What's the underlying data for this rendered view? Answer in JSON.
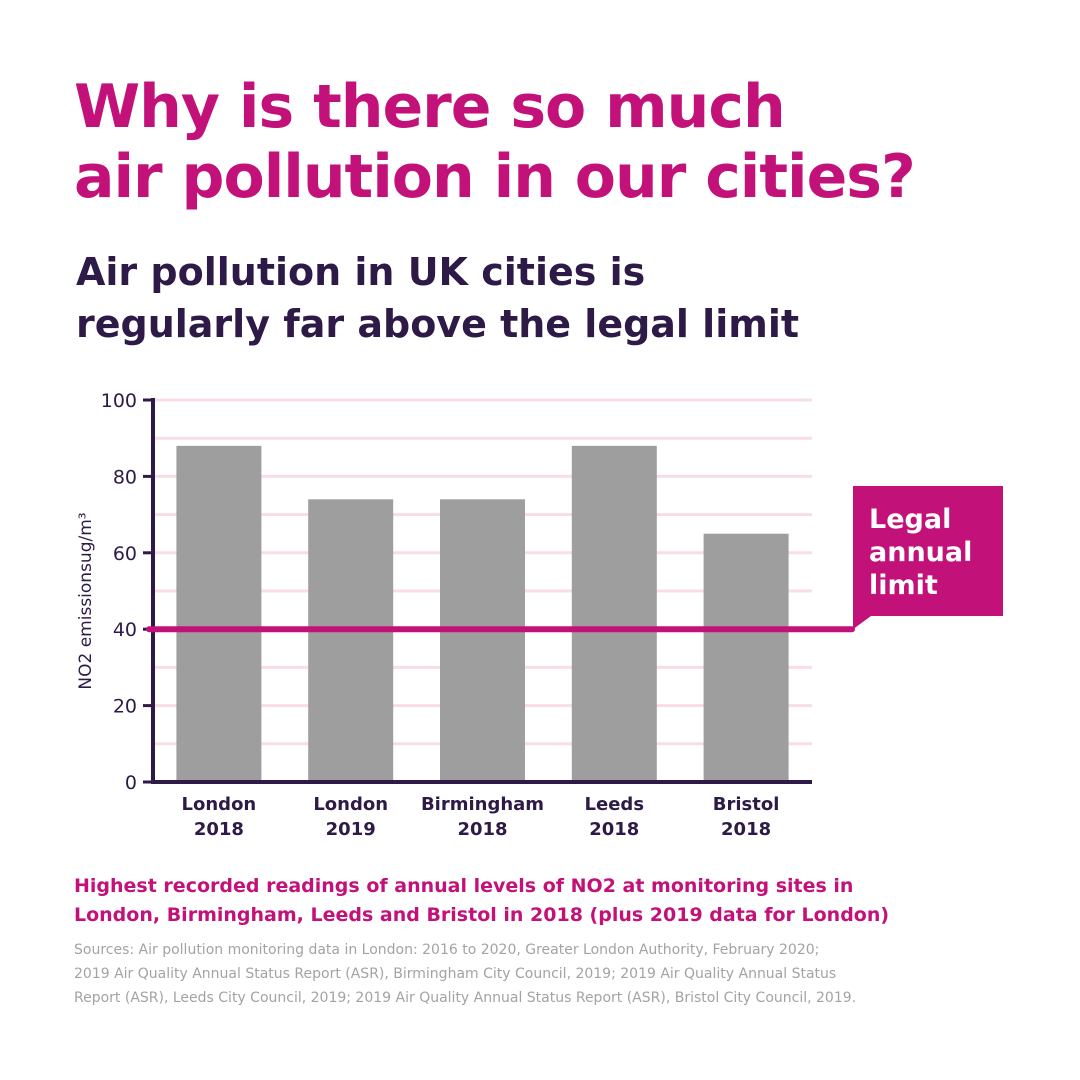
{
  "headline": {
    "line1": "Why is there so much",
    "line2": "air pollution in our cities?"
  },
  "subheadline": {
    "line1": "Air pollution in UK cities is",
    "line2": "regularly far above the legal limit"
  },
  "chart_data": {
    "type": "bar",
    "categories": [
      [
        "London",
        "2018"
      ],
      [
        "London",
        "2019"
      ],
      [
        "Birmingham",
        "2018"
      ],
      [
        "Leeds",
        "2018"
      ],
      [
        "Bristol",
        "2018"
      ]
    ],
    "values": [
      88,
      74,
      74,
      88,
      65
    ],
    "ylabel": "NO2 emissionsug/m³",
    "ylim": [
      0,
      100
    ],
    "yticks": [
      0,
      20,
      40,
      60,
      80,
      100
    ],
    "grid": true,
    "reference_line": {
      "value": 40,
      "label_lines": [
        "Legal",
        "annual",
        "limit"
      ]
    },
    "colors": {
      "bar": "#9e9e9e",
      "axis": "#2e1a47",
      "grid": "#f8dde9",
      "limit": "#c2127a",
      "limit_text": "#ffffff"
    }
  },
  "caption": {
    "line1": "Highest recorded readings of annual levels of NO2 at monitoring sites in",
    "line2": "London, Birmingham, Leeds and Bristol in 2018 (plus 2019 data for London)"
  },
  "sources": {
    "line1": "Sources: Air pollution monitoring data in London: 2016 to 2020, Greater London Authority, February 2020;",
    "line2": "2019 Air Quality Annual Status Report (ASR), Birmingham City Council, 2019; 2019 Air Quality Annual Status",
    "line3": "Report (ASR), Leeds City Council, 2019; 2019 Air Quality Annual Status Report (ASR), Bristol City Council, 2019."
  }
}
